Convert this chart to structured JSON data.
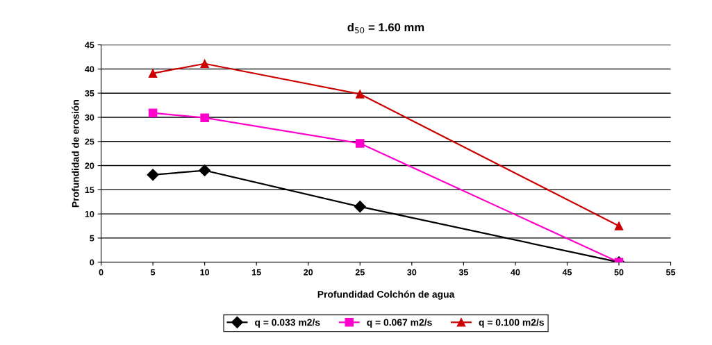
{
  "chart_data": {
    "type": "line",
    "title": "d$_{50}$ = 1.60 mm",
    "xlabel": "Profundidad Colchón de agua",
    "ylabel": "Profundidad de erosión",
    "x": [
      5,
      10,
      25,
      50
    ],
    "series": [
      {
        "name": "q = 0.033 m2/s",
        "color": "#000000",
        "marker": "diamond",
        "values": [
          18.1,
          19.0,
          11.5,
          0
        ]
      },
      {
        "name": "q = 0.067 m2/s",
        "color": "#ff00cc",
        "marker": "square",
        "values": [
          30.9,
          29.9,
          24.6,
          0
        ]
      },
      {
        "name": "q = 0.100 m2/s",
        "color": "#cc0000",
        "marker": "triangle",
        "values": [
          39.1,
          41.1,
          34.8,
          7.5
        ]
      }
    ],
    "xlim": [
      0,
      55
    ],
    "xticks": [
      0,
      5,
      10,
      15,
      20,
      25,
      30,
      35,
      40,
      45,
      50,
      55
    ],
    "ylim": [
      0,
      45
    ],
    "yticks": [
      0,
      5,
      10,
      15,
      20,
      25,
      30,
      35,
      40,
      45
    ],
    "grid": "y",
    "legend": "bottom",
    "line_style": "solid"
  }
}
